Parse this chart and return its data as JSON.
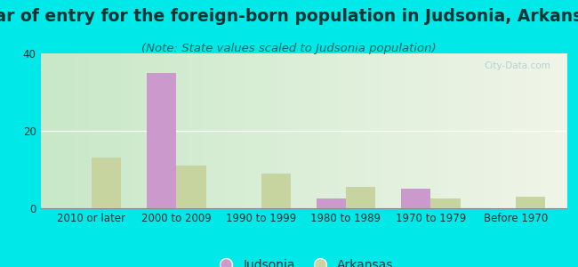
{
  "title": "Year of entry for the foreign-born population in Judsonia, Arkansas",
  "subtitle": "(Note: State values scaled to Judsonia population)",
  "categories": [
    "2010 or later",
    "2000 to 2009",
    "1990 to 1999",
    "1980 to 1989",
    "1970 to 1979",
    "Before 1970"
  ],
  "judsonia_values": [
    0,
    35,
    0,
    2.5,
    5,
    0
  ],
  "arkansas_values": [
    13,
    11,
    9,
    5.5,
    2.5,
    3
  ],
  "judsonia_color": "#cc99cc",
  "arkansas_color": "#c8d4a0",
  "background_outer": "#00e8e8",
  "background_inner_left": "#c8e8c8",
  "background_inner_right": "#f0f5e8",
  "ylim": [
    0,
    40
  ],
  "yticks": [
    0,
    20,
    40
  ],
  "bar_width": 0.35,
  "title_fontsize": 13.5,
  "subtitle_fontsize": 9.5,
  "axis_fontsize": 8.5,
  "legend_fontsize": 10,
  "watermark": "City-Data.com"
}
